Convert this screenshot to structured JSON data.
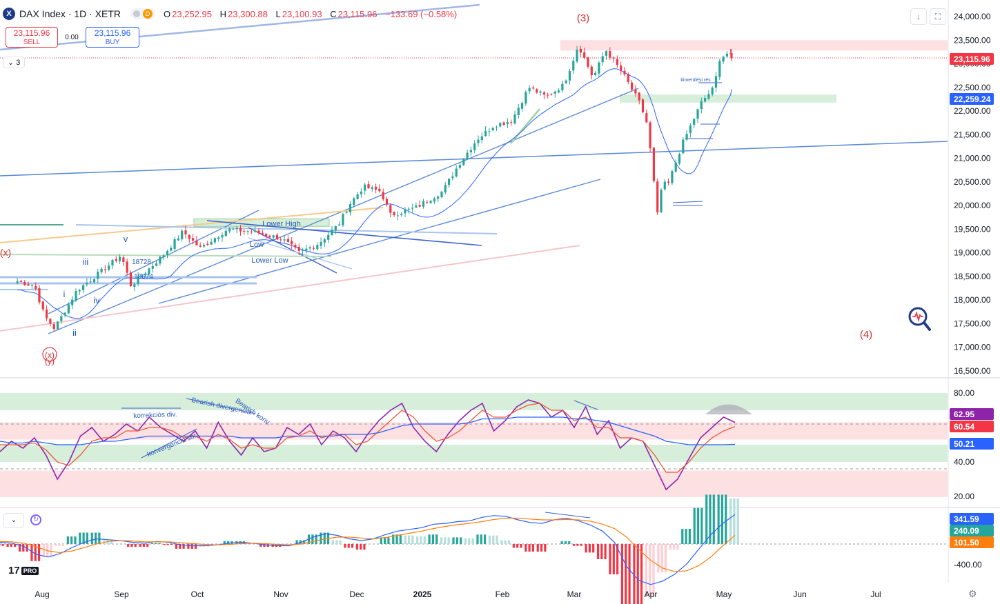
{
  "header": {
    "symbol_icon": "X",
    "title": "DAX Index · 1D · XETR",
    "badge": "D",
    "open_label": "O",
    "open": "23,252.95",
    "high_label": "H",
    "high": "23,300.88",
    "low_label": "L",
    "low": "23,100.93",
    "close_label": "C",
    "close": "23,115.96",
    "change": "−133.69 (−0.58%)"
  },
  "trade": {
    "sell_price": "23,115.96",
    "sell_label": "SELL",
    "spread": "0.00",
    "buy_price": "23,115.96",
    "buy_label": "BUY"
  },
  "indicator_toggle": "3",
  "logo": {
    "text": "17",
    "pro": "PRO"
  },
  "colors": {
    "up": "#26a69a",
    "down": "#f23645",
    "trend": "#5b8bd9",
    "ma": "#2962ff",
    "rsi": "#8e24aa",
    "rsi_ma": "#f0573a",
    "macd": "#2962ff",
    "signal": "#ff7f0e",
    "zone_green": "#d6eeda",
    "zone_red": "#fde0e2"
  },
  "icons": [
    "magnifier-pulse-icon",
    "download-icon",
    "fullscreen-icon",
    "settings-gear-icon",
    "chevron-down-icon",
    "sync-icon"
  ],
  "chart_data": [
    {
      "type": "candlestick",
      "name": "DAX Index",
      "y_ticks": [
        "24,000.00",
        "23,500.00",
        "23,000.00",
        "22,500.00",
        "22,000.00",
        "21,500.00",
        "21,000.00",
        "20,500.00",
        "20,000.00",
        "19,500.00",
        "19,000.00",
        "18,500.00",
        "18,000.00",
        "17,500.00",
        "17,000.00",
        "16,500.00"
      ],
      "ylim": [
        16400,
        24150
      ],
      "x_ticks": [
        "Aug",
        "Sep",
        "Oct",
        "Nov",
        "Dec",
        "2025",
        "Feb",
        "Mar",
        "Apr",
        "May",
        "Jun",
        "Jul"
      ],
      "price_labels": [
        {
          "text": "23,115.96",
          "value": 23115.96,
          "color": "#f23645"
        },
        {
          "text": "22,259.24",
          "value": 22259.24,
          "color": "#2962ff"
        }
      ],
      "anchors": [
        {
          "date": "2024-07-22",
          "close": 18400
        },
        {
          "date": "2024-07-29",
          "close": 18300
        },
        {
          "date": "2024-08-02",
          "close": 17660
        },
        {
          "date": "2024-08-06",
          "close": 17400
        },
        {
          "date": "2024-08-15",
          "close": 18200
        },
        {
          "date": "2024-08-26",
          "close": 18650
        },
        {
          "date": "2024-09-02",
          "close": 18950
        },
        {
          "date": "2024-09-06",
          "close": 18300
        },
        {
          "date": "2024-09-12",
          "close": 18600
        },
        {
          "date": "2024-09-19",
          "close": 18950
        },
        {
          "date": "2024-09-27",
          "close": 19450
        },
        {
          "date": "2024-10-04",
          "close": 19100
        },
        {
          "date": "2024-10-15",
          "close": 19500
        },
        {
          "date": "2024-10-25",
          "close": 19450
        },
        {
          "date": "2024-11-06",
          "close": 19300
        },
        {
          "date": "2024-11-13",
          "close": 19000
        },
        {
          "date": "2024-11-21",
          "close": 19200
        },
        {
          "date": "2024-11-29",
          "close": 19600
        },
        {
          "date": "2024-12-03",
          "close": 20000
        },
        {
          "date": "2024-12-09",
          "close": 20400
        },
        {
          "date": "2024-12-16",
          "close": 20300
        },
        {
          "date": "2024-12-20",
          "close": 19800
        },
        {
          "date": "2024-12-30",
          "close": 19950
        },
        {
          "date": "2025-01-10",
          "close": 20300
        },
        {
          "date": "2025-01-17",
          "close": 20900
        },
        {
          "date": "2025-01-24",
          "close": 21400
        },
        {
          "date": "2025-01-31",
          "close": 21700
        },
        {
          "date": "2025-02-07",
          "close": 21800
        },
        {
          "date": "2025-02-14",
          "close": 22500
        },
        {
          "date": "2025-02-21",
          "close": 22300
        },
        {
          "date": "2025-02-28",
          "close": 22550
        },
        {
          "date": "2025-03-04",
          "close": 23100
        },
        {
          "date": "2025-03-06",
          "close": 23400
        },
        {
          "date": "2025-03-12",
          "close": 22700
        },
        {
          "date": "2025-03-17",
          "close": 23300
        },
        {
          "date": "2025-03-24",
          "close": 22800
        },
        {
          "date": "2025-03-31",
          "close": 22150
        },
        {
          "date": "2025-04-03",
          "close": 21700
        },
        {
          "date": "2025-04-07",
          "close": 19800
        },
        {
          "date": "2025-04-09",
          "close": 20500
        },
        {
          "date": "2025-04-11",
          "close": 20400
        },
        {
          "date": "2025-04-17",
          "close": 21300
        },
        {
          "date": "2025-04-25",
          "close": 22200
        },
        {
          "date": "2025-04-30",
          "close": 22500
        },
        {
          "date": "2025-05-02",
          "close": 23100
        },
        {
          "date": "2025-05-06",
          "close": 23250
        },
        {
          "date": "2025-05-07",
          "close": 23115.96
        }
      ],
      "annotations": [
        "(3)",
        "(4)",
        "(x)",
        "(x)",
        "(y)",
        "v",
        "iii",
        "iv",
        "i",
        "ii",
        "18728",
        "18674",
        "Lower High",
        "Low",
        "Lower Low",
        "kimerülési rés"
      ]
    },
    {
      "type": "line",
      "name": "RSI",
      "y_ticks": [
        "80.00",
        "40.00",
        "20.00"
      ],
      "ylim": [
        15,
        85
      ],
      "price_labels": [
        {
          "text": "62.95",
          "value": 62.95,
          "color": "#8e24aa"
        },
        {
          "text": "60.54",
          "value": 60.54,
          "color": "#f23645"
        },
        {
          "text": "50.21",
          "value": 50.21,
          "color": "#2962ff"
        }
      ],
      "series": [
        {
          "values": [
            46,
            52,
            48,
            54,
            44,
            30,
            40,
            55,
            60,
            52,
            56,
            62,
            58,
            66,
            60,
            56,
            52,
            58,
            48,
            63,
            52,
            44,
            54,
            46,
            48,
            60,
            56,
            62,
            50,
            58,
            54,
            46,
            56,
            64,
            70,
            74,
            60,
            52,
            46,
            56,
            64,
            70,
            74,
            58,
            64,
            72,
            76,
            74,
            66,
            70,
            60,
            72,
            56,
            64,
            48,
            54,
            52,
            38,
            24,
            30,
            42,
            54,
            60,
            66,
            62.95
          ]
        },
        {
          "values": [
            50,
            50,
            50,
            51,
            47,
            40,
            38,
            44,
            52,
            54,
            54,
            58,
            58,
            60,
            60,
            58,
            54,
            55,
            52,
            56,
            53,
            48,
            50,
            48,
            48,
            54,
            55,
            58,
            54,
            56,
            56,
            50,
            52,
            58,
            64,
            70,
            66,
            58,
            52,
            54,
            58,
            64,
            70,
            66,
            66,
            70,
            73,
            74,
            70,
            70,
            64,
            66,
            60,
            60,
            54,
            54,
            52,
            44,
            34,
            34,
            40,
            48,
            54,
            58,
            60.54
          ]
        },
        {
          "values": [
            52,
            51,
            51,
            52,
            51,
            50,
            50,
            50,
            51,
            52,
            52,
            53,
            54,
            55,
            55,
            55,
            55,
            55,
            55,
            55,
            55,
            54,
            54,
            54,
            54,
            55,
            55,
            55,
            55,
            55,
            56,
            56,
            56,
            57,
            59,
            61,
            62,
            62,
            62,
            62,
            62,
            63,
            65,
            65,
            65,
            66,
            66,
            66,
            66,
            66,
            65,
            65,
            64,
            63,
            61,
            59,
            57,
            55,
            52,
            51,
            50,
            50,
            50,
            50,
            50.21
          ]
        }
      ],
      "annotations": [
        "korrekciós div.",
        "Bearish divergencia",
        "Bearish konv.",
        "konvergencia sor"
      ]
    },
    {
      "type": "bar",
      "name": "MACD",
      "y_ticks": [
        "-400.00"
      ],
      "ylim": [
        -520,
        480
      ],
      "price_labels": [
        {
          "text": "341.59",
          "value": 341.59,
          "color": "#2962ff"
        },
        {
          "text": "240.09",
          "value": 240.09,
          "color": "#26a69a"
        },
        {
          "text": "101.50",
          "value": 101.5,
          "color": "#ff7f0e"
        }
      ],
      "series": [
        {
          "values": [
            20,
            10,
            -30,
            -120,
            -150,
            -110,
            -40,
            20,
            60,
            50,
            40,
            20,
            10,
            30,
            20,
            -10,
            -20,
            -20,
            -10,
            10,
            20,
            10,
            -10,
            -20,
            -20,
            20,
            80,
            120,
            100,
            60,
            40,
            60,
            110,
            150,
            170,
            190,
            230,
            240,
            260,
            270,
            310,
            330,
            320,
            280,
            250,
            240,
            280,
            300,
            270,
            220,
            150,
            20,
            -260,
            -420,
            -470,
            -430,
            -350,
            -230,
            -60,
            110,
            240,
            341.59
          ]
        },
        {
          "values": [
            30,
            25,
            10,
            -30,
            -80,
            -100,
            -80,
            -40,
            0,
            30,
            40,
            35,
            25,
            25,
            25,
            15,
            5,
            -5,
            -10,
            -5,
            5,
            10,
            5,
            -5,
            -10,
            0,
            30,
            60,
            80,
            80,
            70,
            60,
            75,
            100,
            125,
            150,
            180,
            205,
            225,
            240,
            260,
            285,
            300,
            300,
            290,
            280,
            280,
            285,
            280,
            265,
            230,
            180,
            80,
            -60,
            -190,
            -280,
            -320,
            -310,
            -250,
            -150,
            -20,
            101.5
          ]
        }
      ]
    }
  ]
}
